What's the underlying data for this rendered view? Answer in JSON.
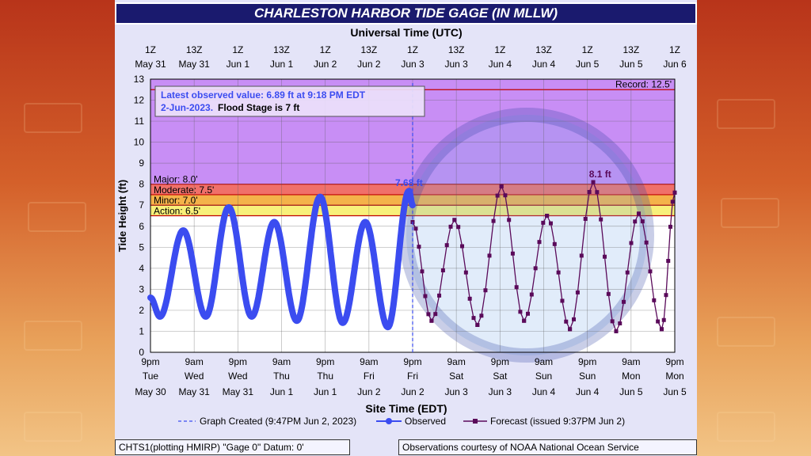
{
  "header": {
    "title": "CHARLESTON HARBOR TIDE GAGE (IN MLLW)"
  },
  "footer": {
    "left": "CHTS1(plotting HMIRP) \"Gage 0\" Datum: 0'",
    "right": "Observations courtesy of NOAA National Ocean Service"
  },
  "colors": {
    "observed": "#3b4cf0",
    "forecast": "#5a0a5a",
    "record": "#c88ef5",
    "major": "#c88ef5",
    "moderate": "#f0706a",
    "minor": "#f4b24a",
    "action": "#f8f07a",
    "title_bg": "#1a1a6e"
  },
  "chart_data": {
    "type": "line",
    "title": "CHARLESTON HARBOR TIDE GAGE (IN MLLW)",
    "top_axis_label": "Universal Time (UTC)",
    "xlabel": "Site Time (EDT)",
    "ylabel": "Tide Height (ft)",
    "ylim": [
      0,
      13
    ],
    "yticks": [
      0,
      1,
      2,
      3,
      4,
      5,
      6,
      7,
      8,
      9,
      10,
      11,
      12,
      13
    ],
    "xlim_hours_from_start": [
      0,
      144
    ],
    "bottom_ticks": [
      {
        "l1": "9pm",
        "l2": "Tue",
        "l3": "May 30"
      },
      {
        "l1": "9am",
        "l2": "Wed",
        "l3": "May 31"
      },
      {
        "l1": "9pm",
        "l2": "Wed",
        "l3": "May 31"
      },
      {
        "l1": "9am",
        "l2": "Thu",
        "l3": "Jun 1"
      },
      {
        "l1": "9pm",
        "l2": "Thu",
        "l3": "Jun 1"
      },
      {
        "l1": "9am",
        "l2": "Fri",
        "l3": "Jun 2"
      },
      {
        "l1": "9pm",
        "l2": "Fri",
        "l3": "Jun 2"
      },
      {
        "l1": "9am",
        "l2": "Sat",
        "l3": "Jun 3"
      },
      {
        "l1": "9pm",
        "l2": "Sat",
        "l3": "Jun 3"
      },
      {
        "l1": "9am",
        "l2": "Sun",
        "l3": "Jun 4"
      },
      {
        "l1": "9pm",
        "l2": "Sun",
        "l3": "Jun 4"
      },
      {
        "l1": "9am",
        "l2": "Mon",
        "l3": "Jun 5"
      },
      {
        "l1": "9pm",
        "l2": "Mon",
        "l3": "Jun 5"
      }
    ],
    "top_ticks": [
      {
        "l1": "1Z",
        "l2": "May 31"
      },
      {
        "l1": "13Z",
        "l2": "May 31"
      },
      {
        "l1": "1Z",
        "l2": "Jun 1"
      },
      {
        "l1": "13Z",
        "l2": "Jun 1"
      },
      {
        "l1": "1Z",
        "l2": "Jun 2"
      },
      {
        "l1": "13Z",
        "l2": "Jun 2"
      },
      {
        "l1": "1Z",
        "l2": "Jun 3"
      },
      {
        "l1": "13Z",
        "l2": "Jun 3"
      },
      {
        "l1": "1Z",
        "l2": "Jun 4"
      },
      {
        "l1": "13Z",
        "l2": "Jun 4"
      },
      {
        "l1": "1Z",
        "l2": "Jun 5"
      },
      {
        "l1": "13Z",
        "l2": "Jun 5"
      },
      {
        "l1": "1Z",
        "l2": "Jun 6"
      }
    ],
    "stages": [
      {
        "name": "record",
        "label": "Record: 12.5'",
        "value": 12.5
      },
      {
        "name": "major",
        "label": "Major: 8.0'",
        "value": 8.0
      },
      {
        "name": "moderate",
        "label": "Moderate: 7.5'",
        "value": 7.5
      },
      {
        "name": "minor",
        "label": "Minor: 7.0'",
        "value": 7.0
      },
      {
        "name": "action",
        "label": "Action: 6.5'",
        "value": 6.5
      }
    ],
    "info_box": {
      "line1": "Latest observed value: 6.89 ft at 9:18 PM EDT",
      "line2a": "2-Jun-2023.",
      "line2b": "Flood Stage is 7 ft"
    },
    "graph_created_hour": 72,
    "annotations": [
      {
        "text": "7.68 ft",
        "x": 71.0,
        "y": 7.68,
        "color": "observed"
      },
      {
        "text": "8.1 ft",
        "x": 123.5,
        "y": 8.1,
        "color": "forecast"
      }
    ],
    "legend": {
      "graph_created": "Graph Created (9:47PM Jun 2, 2023)",
      "observed": "Observed",
      "forecast": "Forecast (issued 9:37PM Jun 2)"
    },
    "series": [
      {
        "name": "Observed",
        "extrema": [
          {
            "x": 0,
            "y": 2.6
          },
          {
            "x": 2.6,
            "y": 1.7
          },
          {
            "x": 9.0,
            "y": 5.8
          },
          {
            "x": 15.2,
            "y": 1.7
          },
          {
            "x": 21.5,
            "y": 6.9
          },
          {
            "x": 27.8,
            "y": 1.7
          },
          {
            "x": 34.0,
            "y": 6.2
          },
          {
            "x": 40.2,
            "y": 1.5
          },
          {
            "x": 46.6,
            "y": 7.4
          },
          {
            "x": 52.8,
            "y": 1.4
          },
          {
            "x": 59.0,
            "y": 6.2
          },
          {
            "x": 65.2,
            "y": 1.2
          },
          {
            "x": 71.0,
            "y": 7.68
          },
          {
            "x": 72.0,
            "y": 7.0
          }
        ]
      },
      {
        "name": "Forecast",
        "extrema": [
          {
            "x": 72.0,
            "y": 6.2
          },
          {
            "x": 77.2,
            "y": 1.5
          },
          {
            "x": 83.5,
            "y": 6.3
          },
          {
            "x": 89.8,
            "y": 1.3
          },
          {
            "x": 96.4,
            "y": 7.9
          },
          {
            "x": 102.6,
            "y": 1.5
          },
          {
            "x": 108.9,
            "y": 6.5
          },
          {
            "x": 115.2,
            "y": 1.1
          },
          {
            "x": 121.6,
            "y": 8.1
          },
          {
            "x": 127.9,
            "y": 1.0
          },
          {
            "x": 134.1,
            "y": 6.6
          },
          {
            "x": 140.4,
            "y": 1.1
          },
          {
            "x": 144.0,
            "y": 7.6
          }
        ]
      }
    ]
  }
}
